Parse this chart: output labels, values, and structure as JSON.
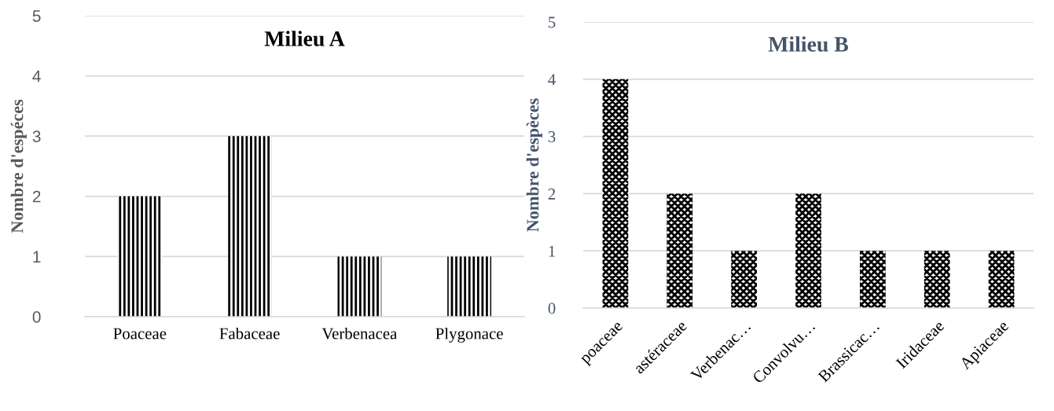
{
  "chart_data": [
    {
      "type": "bar",
      "title": "Milieu A",
      "ylabel": "Nombre d'espéces",
      "categories": [
        "Poaceae",
        "Fabaceae",
        "Verbenacea",
        "Plygonace"
      ],
      "values": [
        2,
        3,
        1,
        1
      ],
      "color": "#000000",
      "ylim": [
        0,
        5
      ],
      "yticks": [
        0,
        1,
        2,
        3,
        4,
        5
      ],
      "grid": "y"
    },
    {
      "type": "bar",
      "title": "Milieu B",
      "ylabel": "Nombre d'espèces",
      "categories": [
        "poaceae",
        "astéraceae",
        "Verbenac…",
        "Convolvu…",
        "Brassicac…",
        "Iridaceae",
        "Apiaceae"
      ],
      "values": [
        4,
        2,
        1,
        2,
        1,
        1,
        1
      ],
      "color": "#000000",
      "ylim": [
        0,
        5
      ],
      "yticks": [
        0,
        1,
        2,
        3,
        4,
        5
      ],
      "grid": "y"
    }
  ]
}
